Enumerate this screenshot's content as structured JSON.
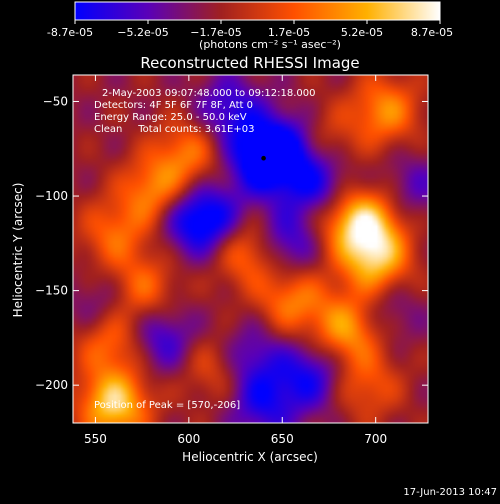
{
  "colorbar": {
    "tick_labels": [
      "-8.7e-05",
      "−5.2e-05",
      "−1.7e-05",
      "1.7e-05",
      "5.2e-05",
      "8.7e-05"
    ],
    "unit_label": "(photons cm⁻² s⁻¹ asec⁻²)",
    "range": [
      -8.7e-05,
      8.7e-05
    ],
    "colors": [
      "#0000ff",
      "#5a00b8",
      "#a02020",
      "#ff5000",
      "#ffb000",
      "#ffffff"
    ]
  },
  "title": "Reconstructed RHESSI Image",
  "annotations": {
    "time": "2-May-2003 09:07:48.000 to 09:12:18.000",
    "detectors": "Detectors: 4F 5F 6F 7F 8F, Att 0",
    "energy": "Energy Range: 25.0 - 50.0 keV",
    "clean": "Clean     Total counts: 3.61E+03",
    "peak": "Position of Peak = [570,-206]"
  },
  "footer_timestamp": "17-Jun-2013 10:47",
  "chart_data": {
    "type": "heatmap",
    "title": "Reconstructed RHESSI Image",
    "xlabel": "Heliocentric X (arcsec)",
    "ylabel": "Heliocentric Y (arcsec)",
    "xlim": [
      538,
      728
    ],
    "ylim": [
      -220,
      -36
    ],
    "x_ticks": [
      550,
      600,
      650,
      700
    ],
    "y_ticks": [
      -50,
      -100,
      -150,
      -200
    ],
    "colorbar_range": [
      -8.7e-05,
      8.7e-05
    ],
    "marker": {
      "x": 640,
      "y": -80
    },
    "sources": [
      {
        "x": 560,
        "y": -210,
        "value": 9e-05
      },
      {
        "x": 558,
        "y": -175,
        "value": 6e-05
      },
      {
        "x": 575,
        "y": -150,
        "value": 5e-05
      },
      {
        "x": 560,
        "y": -120,
        "value": 4.5e-05
      },
      {
        "x": 583,
        "y": -98,
        "value": 6.5e-05
      },
      {
        "x": 600,
        "y": -77,
        "value": 5e-05
      },
      {
        "x": 632,
        "y": -128,
        "value": 7e-05
      },
      {
        "x": 615,
        "y": -190,
        "value": 4e-05
      },
      {
        "x": 655,
        "y": -155,
        "value": 5.5e-05
      },
      {
        "x": 695,
        "y": -115,
        "value": 8e-05
      },
      {
        "x": 700,
        "y": -135,
        "value": 7.5e-05
      },
      {
        "x": 685,
        "y": -170,
        "value": 7e-05
      },
      {
        "x": 695,
        "y": -200,
        "value": 4e-05
      },
      {
        "x": 670,
        "y": -72,
        "value": 4e-05
      },
      {
        "x": 705,
        "y": -55,
        "value": 6e-05
      },
      {
        "x": 680,
        "y": -110,
        "value": 3.5e-05
      },
      {
        "x": 640,
        "y": -80,
        "value": -8.5e-05
      },
      {
        "x": 655,
        "y": -75,
        "value": -6e-05
      },
      {
        "x": 600,
        "y": -110,
        "value": -6e-05
      },
      {
        "x": 615,
        "y": -115,
        "value": -5e-05
      },
      {
        "x": 622,
        "y": -55,
        "value": -5e-05
      },
      {
        "x": 670,
        "y": -95,
        "value": -6e-05
      },
      {
        "x": 650,
        "y": -125,
        "value": -6e-05
      },
      {
        "x": 640,
        "y": -210,
        "value": -5e-05
      },
      {
        "x": 632,
        "y": -185,
        "value": -4.5e-05
      },
      {
        "x": 665,
        "y": -195,
        "value": -5.5e-05
      },
      {
        "x": 555,
        "y": -160,
        "value": -4e-05
      },
      {
        "x": 585,
        "y": -175,
        "value": -5e-05
      },
      {
        "x": 705,
        "y": -160,
        "value": -3e-05
      },
      {
        "x": 720,
        "y": -95,
        "value": -3e-05
      }
    ]
  }
}
